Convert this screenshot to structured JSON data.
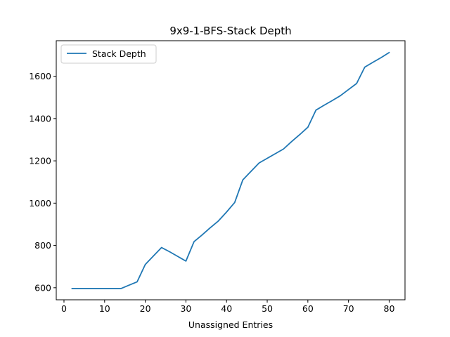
{
  "chart_data": {
    "type": "line",
    "title": "9x9-1-BFS-Stack Depth",
    "xlabel": "Unassigned Entries",
    "ylabel": "",
    "xlim": [
      -1.9,
      83.9
    ],
    "ylim": [
      543,
      1768
    ],
    "xticks": [
      0,
      10,
      20,
      30,
      40,
      50,
      60,
      70,
      80
    ],
    "yticks": [
      600,
      800,
      1000,
      1200,
      1400,
      1600
    ],
    "grid": false,
    "legend_position": "upper-left",
    "series": [
      {
        "name": "Stack Depth",
        "color": "#1f77b4",
        "x": [
          2,
          4,
          6,
          8,
          10,
          12,
          14,
          16,
          18,
          20,
          22,
          24,
          26,
          28,
          30,
          32,
          34,
          36,
          38,
          40,
          42,
          44,
          46,
          48,
          50,
          52,
          54,
          56,
          58,
          60,
          62,
          64,
          66,
          68,
          70,
          72,
          74,
          76,
          78,
          80
        ],
        "y": [
          596,
          596,
          596,
          596,
          596,
          596,
          596,
          612,
          628,
          710,
          750,
          790,
          770,
          748,
          726,
          818,
          850,
          884,
          916,
          958,
          1003,
          1110,
          1150,
          1190,
          1212,
          1234,
          1256,
          1291,
          1324,
          1359,
          1440,
          1463,
          1485,
          1508,
          1537,
          1566,
          1643,
          1666,
          1688,
          1712
        ]
      }
    ]
  }
}
